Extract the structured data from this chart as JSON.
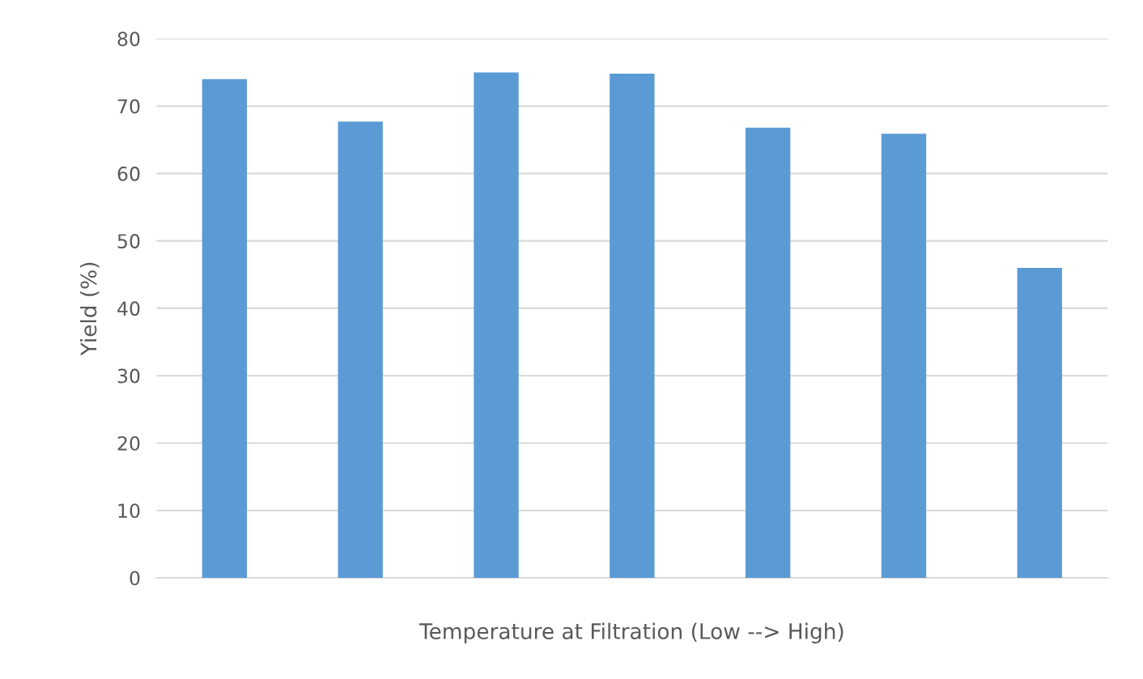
{
  "chart_data": {
    "type": "bar",
    "xlabel": "Temperature at Filtration (Low --> High)",
    "ylabel": "Yield (%)",
    "categories": [
      null,
      null,
      null,
      null,
      null,
      null,
      null
    ],
    "values": [
      74,
      67.7,
      75,
      74.8,
      66.8,
      65.9,
      46
    ],
    "color": "#5b9bd5",
    "ylim": [
      0,
      80
    ],
    "yticks": [
      0,
      10,
      20,
      30,
      40,
      50,
      60,
      70,
      80
    ],
    "grid": "y",
    "tick_labels": "y"
  }
}
